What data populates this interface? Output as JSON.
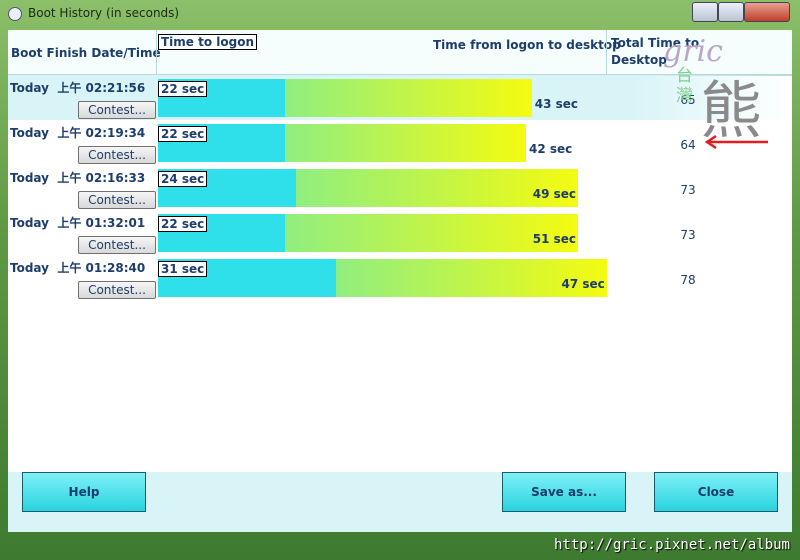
{
  "window": {
    "title": "Boot History (in seconds)"
  },
  "header": {
    "date_col": "Boot Finish Date/Time",
    "logon_col": "Time to logon",
    "desktop_col": "Time from logon to desktop",
    "total_col": "Total Time to Desktop"
  },
  "rows": [
    {
      "date": "Today  上午 02:21:56",
      "button": "Contest...",
      "logon": 22,
      "logon_label": "22 sec",
      "desktop": 43,
      "desktop_label": "43 sec",
      "total": 65
    },
    {
      "date": "Today  上午 02:19:34",
      "button": "Contest...",
      "logon": 22,
      "logon_label": "22 sec",
      "desktop": 42,
      "desktop_label": "42 sec",
      "total": 64
    },
    {
      "date": "Today  上午 02:16:33",
      "button": "Contest...",
      "logon": 24,
      "logon_label": "24 sec",
      "desktop": 49,
      "desktop_label": "49 sec",
      "total": 73
    },
    {
      "date": "Today  上午 01:32:01",
      "button": "Contest...",
      "logon": 22,
      "logon_label": "22 sec",
      "desktop": 51,
      "desktop_label": "51 sec",
      "total": 73
    },
    {
      "date": "Today  上午 01:28:40",
      "button": "Contest...",
      "logon": 31,
      "logon_label": "31 sec",
      "desktop": 47,
      "desktop_label": "47 sec",
      "total": 78
    }
  ],
  "footer": {
    "help": "Help",
    "save": "Save as...",
    "close": "Close"
  },
  "watermark": {
    "signature": "gric",
    "logo_small": "台灣",
    "logo_big": "熊",
    "url": "http://gric.pixnet.net/album"
  }
}
